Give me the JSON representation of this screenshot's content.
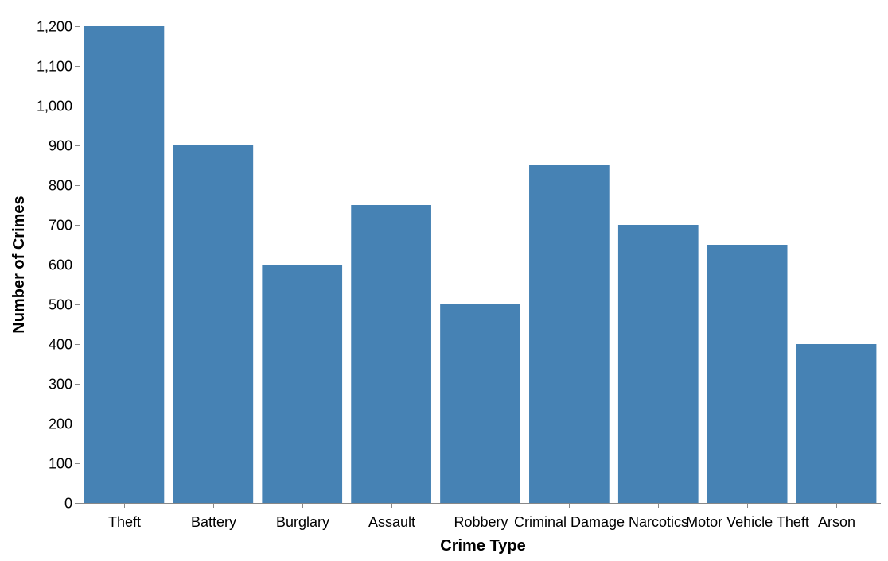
{
  "chart_data": {
    "type": "bar",
    "title": "",
    "xlabel": "Crime Type",
    "ylabel": "Number of Crimes",
    "categories": [
      "Theft",
      "Battery",
      "Burglary",
      "Assault",
      "Robbery",
      "Criminal Damage",
      "Narcotics",
      "Motor Vehicle Theft",
      "Arson"
    ],
    "values": [
      1200,
      900,
      600,
      750,
      500,
      850,
      700,
      650,
      400
    ],
    "ylim": [
      0,
      1200
    ],
    "yticks": [
      "0",
      "100",
      "200",
      "300",
      "400",
      "500",
      "600",
      "700",
      "800",
      "900",
      "1,000",
      "1,100",
      "1,200"
    ],
    "bar_color": "#4682b4",
    "axis_color": "#888888",
    "grid": false,
    "legend": "none"
  }
}
